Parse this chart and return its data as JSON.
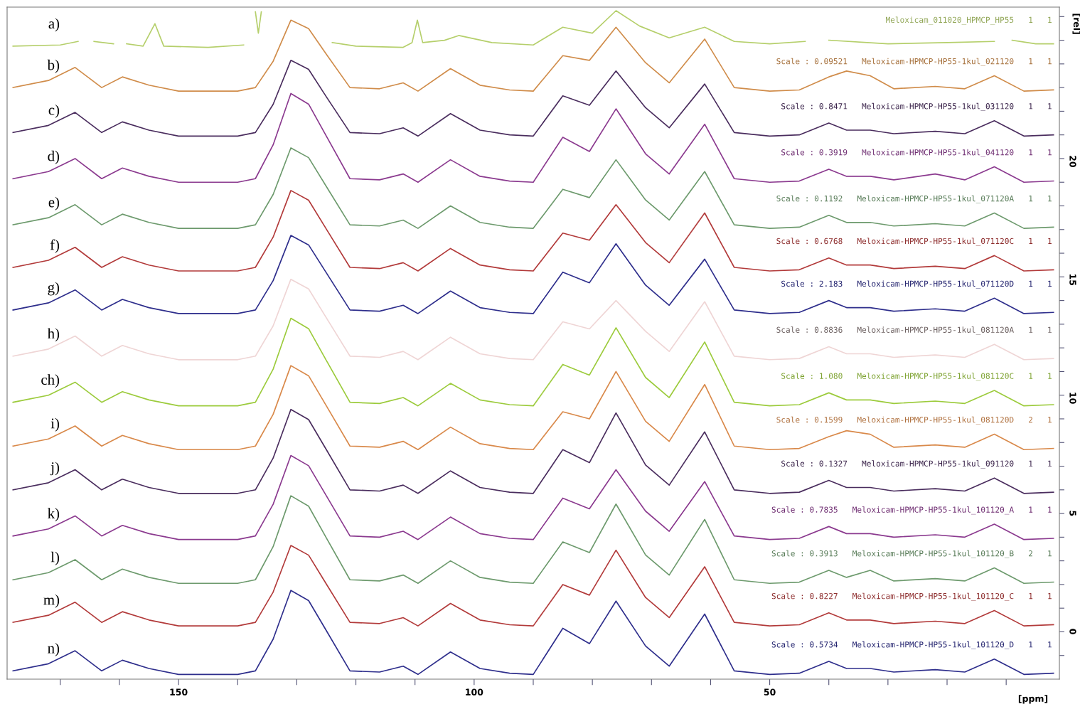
{
  "chart_data": {
    "type": "line",
    "xlabel": "[ppm]",
    "ylabel": "[rel]",
    "xlim": [
      179,
      1
    ],
    "ylim": [
      -2,
      26.4
    ],
    "xticks": [
      {
        "value": 170,
        "label": null
      },
      {
        "value": 160,
        "label": null
      },
      150,
      {
        "value": 140,
        "label": null
      },
      {
        "value": 130,
        "label": null
      },
      {
        "value": 120,
        "label": null
      },
      {
        "value": 110,
        "label": null
      },
      100,
      {
        "value": 90,
        "label": null
      },
      {
        "value": 80,
        "label": null
      },
      {
        "value": 70,
        "label": null
      },
      {
        "value": 60,
        "label": null
      },
      50,
      {
        "value": 40,
        "label": null
      },
      {
        "value": 30,
        "label": null
      },
      {
        "value": 20,
        "label": null
      },
      {
        "value": 10,
        "label": null
      }
    ],
    "yticks": [
      {
        "value": -1,
        "label": null
      },
      0,
      {
        "value": 1,
        "label": null
      },
      {
        "value": 2,
        "label": null
      },
      {
        "value": 3,
        "label": null
      },
      {
        "value": 4,
        "label": null
      },
      5,
      {
        "value": 6,
        "label": null
      },
      {
        "value": 7,
        "label": null
      },
      {
        "value": 8,
        "label": null
      },
      {
        "value": 9,
        "label": null
      },
      10,
      {
        "value": 11,
        "label": null
      },
      {
        "value": 12,
        "label": null
      },
      {
        "value": 13,
        "label": null
      },
      {
        "value": 14,
        "label": null
      },
      15,
      {
        "value": 16,
        "label": null
      },
      {
        "value": 17,
        "label": null
      },
      {
        "value": 18,
        "label": null
      },
      {
        "value": 19,
        "label": null
      },
      20,
      {
        "value": 21,
        "label": null
      },
      {
        "value": 22,
        "label": null
      },
      {
        "value": 23,
        "label": null
      },
      {
        "value": 24,
        "label": null
      },
      {
        "value": 25,
        "label": null
      },
      {
        "value": 26,
        "label": null
      }
    ],
    "grid": false,
    "legend": false,
    "marker": "none",
    "line_style": "solid",
    "x": [
      178,
      172,
      167.5,
      163,
      159.5,
      155,
      150,
      140,
      137,
      134,
      131,
      128,
      125,
      121,
      116,
      112,
      109.5,
      104,
      99,
      94,
      90,
      85,
      80.5,
      76,
      71,
      67,
      61,
      56,
      50,
      45,
      40,
      37,
      33,
      29,
      22,
      17,
      12,
      7,
      2
    ],
    "series": [
      {
        "name": "a)",
        "color": "#b5cf6b",
        "x": [
          178,
          170,
          167,
          165.6,
          164.3,
          161,
          159.9,
          158.8,
          156,
          154,
          152.5,
          145,
          139,
          137.5,
          137,
          136.5,
          136,
          135.5,
          134.5,
          131,
          127,
          125.3,
          124,
          120,
          112,
          110.5,
          109.6,
          108.7,
          105,
          102.6,
          97,
          90,
          85,
          80,
          76,
          72,
          67,
          61,
          56,
          50,
          44,
          42,
          40,
          30,
          20,
          12,
          10.5,
          9,
          5,
          2
        ],
        "values": [
          24.75,
          24.8,
          24.95,
          null,
          24.95,
          24.85,
          null,
          24.85,
          24.75,
          25.7,
          24.75,
          24.7,
          24.8,
          null,
          26.2,
          25.3,
          26.2,
          null,
          null,
          null,
          null,
          null,
          24.9,
          24.75,
          24.7,
          24.9,
          25.85,
          24.9,
          25.0,
          25.2,
          24.9,
          24.8,
          25.55,
          25.3,
          26.25,
          25.6,
          25.1,
          25.55,
          24.95,
          24.85,
          24.95,
          null,
          25.0,
          24.85,
          24.9,
          24.95,
          null,
          25.0,
          24.85,
          24.85
        ]
      },
      {
        "name": "b)",
        "color": "#d08c4a",
        "values": [
          23.0,
          23.3,
          23.85,
          23.0,
          23.45,
          23.1,
          22.85,
          22.85,
          23.0,
          24.11,
          25.85,
          25.49,
          24.41,
          23.0,
          22.95,
          23.2,
          22.85,
          23.8,
          23.1,
          22.9,
          22.85,
          24.35,
          24.15,
          25.55,
          24.05,
          23.2,
          25.05,
          23.0,
          22.85,
          22.9,
          23.45,
          23.7,
          23.5,
          22.95,
          23.05,
          22.95,
          23.5,
          22.85,
          22.9
        ]
      },
      {
        "name": "c)",
        "color": "#4a2d5e",
        "values": [
          21.1,
          21.4,
          21.95,
          21.1,
          21.55,
          21.2,
          20.95,
          20.95,
          21.1,
          22.29,
          24.15,
          23.77,
          22.61,
          21.1,
          21.05,
          21.3,
          20.95,
          21.9,
          21.2,
          21.0,
          20.95,
          22.65,
          22.25,
          23.7,
          22.15,
          21.3,
          23.15,
          21.1,
          20.95,
          21.0,
          21.5,
          21.2,
          21.2,
          21.05,
          21.15,
          21.05,
          21.6,
          20.95,
          21.0
        ]
      },
      {
        "name": "d)",
        "color": "#8b3a8f",
        "values": [
          19.15,
          19.45,
          20.0,
          19.15,
          19.6,
          19.25,
          19.0,
          19.0,
          19.15,
          20.58,
          22.75,
          22.3,
          20.95,
          19.15,
          19.1,
          19.35,
          19.0,
          19.95,
          19.25,
          19.05,
          19.0,
          20.9,
          20.3,
          22.1,
          20.2,
          19.35,
          21.45,
          19.15,
          19.0,
          19.05,
          19.55,
          19.25,
          19.25,
          19.1,
          19.35,
          19.1,
          19.65,
          19.0,
          19.05
        ]
      },
      {
        "name": "e)",
        "color": "#6d9a6d",
        "values": [
          17.2,
          17.5,
          18.05,
          17.2,
          17.65,
          17.3,
          17.05,
          17.05,
          17.2,
          18.48,
          20.45,
          20.04,
          18.82,
          17.2,
          17.15,
          17.4,
          17.05,
          18.0,
          17.3,
          17.1,
          17.05,
          18.7,
          18.35,
          19.95,
          18.25,
          17.4,
          19.45,
          17.2,
          17.05,
          17.1,
          17.6,
          17.3,
          17.3,
          17.15,
          17.25,
          17.15,
          17.7,
          17.05,
          17.1
        ]
      },
      {
        "name": "f)",
        "color": "#b23a3a",
        "values": [
          15.4,
          15.7,
          16.25,
          15.4,
          15.85,
          15.5,
          15.25,
          15.25,
          15.4,
          16.68,
          18.65,
          18.24,
          17.02,
          15.4,
          15.35,
          15.6,
          15.25,
          16.2,
          15.5,
          15.3,
          15.25,
          16.85,
          16.55,
          18.05,
          16.45,
          15.6,
          17.7,
          15.4,
          15.25,
          15.3,
          15.8,
          15.5,
          15.5,
          15.35,
          15.45,
          15.35,
          15.9,
          15.25,
          15.3
        ]
      },
      {
        "name": "g)",
        "color": "#2e2e8c",
        "values": [
          13.6,
          13.9,
          14.45,
          13.6,
          14.05,
          13.7,
          13.45,
          13.45,
          13.6,
          14.84,
          16.75,
          16.35,
          15.17,
          13.6,
          13.55,
          13.8,
          13.45,
          14.4,
          13.7,
          13.5,
          13.45,
          15.2,
          14.75,
          16.4,
          14.65,
          13.8,
          15.75,
          13.6,
          13.45,
          13.5,
          14.0,
          13.7,
          13.7,
          13.55,
          13.65,
          13.55,
          14.1,
          13.45,
          13.5
        ]
      },
      {
        "name": "h)",
        "color": "#efd5d5",
        "values": [
          11.65,
          11.95,
          12.5,
          11.65,
          12.1,
          11.75,
          11.5,
          11.5,
          11.65,
          12.93,
          14.9,
          14.49,
          13.27,
          11.65,
          11.6,
          11.85,
          11.5,
          12.45,
          11.75,
          11.55,
          11.5,
          13.1,
          12.8,
          14.0,
          12.7,
          11.85,
          13.95,
          11.65,
          11.5,
          11.55,
          12.05,
          11.75,
          11.75,
          11.6,
          11.7,
          11.6,
          12.15,
          11.5,
          11.55
        ]
      },
      {
        "name": "ch)",
        "color": "#9ccb3c",
        "values": [
          9.7,
          10.0,
          10.55,
          9.7,
          10.15,
          9.8,
          9.55,
          9.55,
          9.7,
          11.1,
          13.25,
          12.81,
          11.47,
          9.7,
          9.65,
          9.9,
          9.55,
          10.5,
          9.8,
          9.6,
          9.55,
          11.3,
          10.85,
          12.85,
          10.75,
          9.9,
          12.25,
          9.7,
          9.55,
          9.6,
          10.1,
          9.8,
          9.8,
          9.65,
          9.75,
          9.65,
          10.2,
          9.55,
          9.6
        ]
      },
      {
        "name": "i)",
        "color": "#d9894a",
        "values": [
          7.85,
          8.15,
          8.7,
          7.85,
          8.3,
          7.95,
          7.7,
          7.7,
          7.85,
          9.19,
          11.25,
          10.82,
          9.55,
          7.85,
          7.8,
          8.05,
          7.7,
          8.65,
          7.95,
          7.75,
          7.7,
          9.3,
          9.0,
          11.0,
          8.9,
          8.05,
          10.45,
          7.85,
          7.7,
          7.75,
          8.25,
          8.5,
          8.35,
          7.8,
          7.9,
          7.8,
          8.35,
          7.7,
          7.75
        ]
      },
      {
        "name": "j)",
        "color": "#4a2d5e",
        "values": [
          6.0,
          6.3,
          6.85,
          6.0,
          6.45,
          6.1,
          5.85,
          5.85,
          6.0,
          7.34,
          9.4,
          8.97,
          7.7,
          6.0,
          5.95,
          6.2,
          5.85,
          6.8,
          6.1,
          5.9,
          5.85,
          7.7,
          7.15,
          9.25,
          7.05,
          6.2,
          8.45,
          6.0,
          5.85,
          5.9,
          6.4,
          6.1,
          6.1,
          5.95,
          6.05,
          5.95,
          6.5,
          5.85,
          5.9
        ]
      },
      {
        "name": "k)",
        "color": "#8b3a8f",
        "values": [
          4.05,
          4.35,
          4.9,
          4.05,
          4.5,
          4.15,
          3.9,
          3.9,
          4.05,
          5.39,
          7.45,
          7.02,
          5.75,
          4.05,
          4.0,
          4.25,
          3.9,
          4.85,
          4.15,
          3.95,
          3.9,
          5.65,
          5.2,
          6.85,
          5.1,
          4.25,
          6.35,
          4.05,
          3.9,
          3.95,
          4.45,
          4.15,
          4.15,
          4.0,
          4.1,
          4.0,
          4.55,
          3.9,
          3.95
        ]
      },
      {
        "name": "l)",
        "color": "#6d9a6d",
        "values": [
          2.2,
          2.5,
          3.05,
          2.2,
          2.65,
          2.3,
          2.05,
          2.05,
          2.2,
          3.6,
          5.75,
          5.31,
          3.97,
          2.2,
          2.15,
          2.4,
          2.05,
          3.0,
          2.3,
          2.1,
          2.05,
          3.8,
          3.35,
          5.4,
          3.25,
          2.4,
          4.75,
          2.2,
          2.05,
          2.1,
          2.6,
          2.3,
          2.6,
          2.15,
          2.25,
          2.15,
          2.7,
          2.05,
          2.1
        ]
      },
      {
        "name": "m)",
        "color": "#b23a3a",
        "values": [
          0.4,
          0.7,
          1.25,
          0.4,
          0.85,
          0.5,
          0.25,
          0.25,
          0.4,
          1.68,
          3.65,
          3.24,
          2.02,
          0.4,
          0.35,
          0.6,
          0.25,
          1.2,
          0.5,
          0.3,
          0.25,
          2.0,
          1.55,
          3.45,
          1.45,
          0.6,
          2.75,
          0.4,
          0.25,
          0.3,
          0.8,
          0.5,
          0.5,
          0.35,
          0.45,
          0.35,
          0.9,
          0.25,
          0.3
        ]
      },
      {
        "name": "n)",
        "color": "#2e2e8c",
        "values": [
          -1.65,
          -1.35,
          -0.8,
          -1.65,
          -1.2,
          -1.55,
          -1.8,
          -1.8,
          -1.65,
          -0.31,
          1.75,
          1.32,
          0.05,
          -1.65,
          -1.7,
          -1.45,
          -1.8,
          -0.85,
          -1.55,
          -1.75,
          -1.8,
          0.15,
          -0.5,
          1.3,
          -0.6,
          -1.45,
          0.75,
          -1.65,
          -1.8,
          -1.75,
          -1.25,
          -1.55,
          -1.55,
          -1.7,
          -1.6,
          -1.7,
          -1.15,
          -1.8,
          -1.75
        ]
      }
    ],
    "annotations": [
      "Meloxicam_011020_HPMCP_HP55   1   1",
      "Scale : 0.09521   Meloxicam-HPMCP-HP55-1kul_021120   1   1",
      "Scale : 0.8471   Meloxicam-HPMCP-HP55-1kul_031120   1   1",
      "Scale : 0.3919   Meloxicam-HPMCP-HP55-1kul_041120   1   1",
      "Scale : 0.1192   Meloxicam-HPMCP-HP55-1kul_071120A   1   1",
      "Scale : 0.6768   Meloxicam-HPMCP-HP55-1kul_071120C   1   1",
      "Scale : 2.183   Meloxicam-HPMCP-HP55-1kul_071120D   1   1",
      "Scale : 0.8836   Meloxicam-HPMCP-HP55-1kul_081120A   1   1",
      "Scale : 1.080   Meloxicam-HPMCP-HP55-1kul_081120C   1   1",
      "Scale : 0.1599   Meloxicam-HPMCP-HP55-1kul_081120D   2   1",
      "Scale : 0.1327   Meloxicam-HPMCP-HP55-1kul_091120   1   1",
      "Scale : 0.7835   Meloxicam-HPMCP-HP55-1kul_101120_A   1   1",
      "Scale : 0.3913   Meloxicam-HPMCP-HP55-1kul_101120_B   2   1",
      "Scale : 0.8227   Meloxicam-HPMCP-HP55-1kul_101120_C   1   1",
      "Scale : 0.5734   Meloxicam-HPMCP-HP55-1kul_101120_D   1   1"
    ]
  }
}
